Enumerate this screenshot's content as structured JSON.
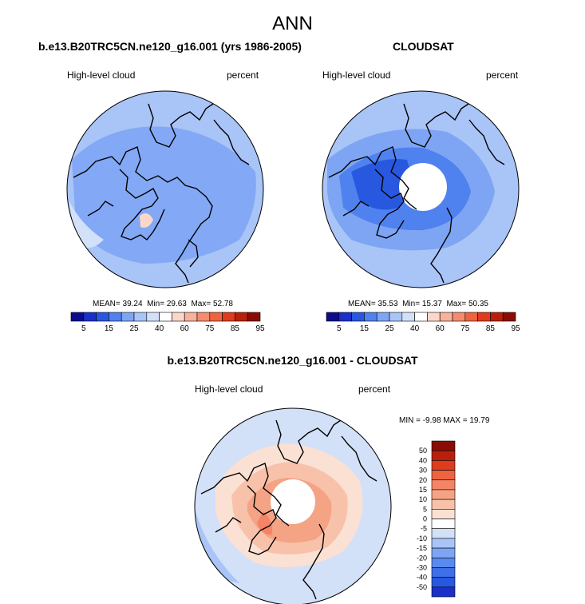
{
  "page": {
    "title": "ANN"
  },
  "colors": {
    "abs_scale": [
      "#0c0c8c",
      "#1a30c8",
      "#2858e0",
      "#4f82ee",
      "#7ea5f4",
      "#a9c4f7",
      "#d2e0f8",
      "#ffffff",
      "#fbd7c9",
      "#f8b19a",
      "#f58c6e",
      "#ef6440",
      "#de3c1c",
      "#b9200c",
      "#8a0d05"
    ],
    "diff_scale": [
      "#0c0c8c",
      "#1a30c8",
      "#2858e0",
      "#3f6fe8",
      "#5a8af0",
      "#7ea5f4",
      "#a9c4f7",
      "#d2e0f8",
      "#ffffff",
      "#fbe1d3",
      "#f8c2aa",
      "#f5a385",
      "#f58466",
      "#ef6440",
      "#de3c1c",
      "#b9200c",
      "#8a0d05"
    ],
    "frame": "#000000"
  },
  "chart_data": [
    {
      "type": "heatmap",
      "projection": "north-polar-stereographic",
      "title": "b.e13.B20TRC5CN.ne120_g16.001 (yrs 1986-2005)",
      "variable_label": "High-level cloud",
      "units": "percent",
      "stats": {
        "mean": "39.24",
        "min": "29.63",
        "max": "52.78"
      },
      "stats_labels": {
        "mean": "MEAN=",
        "min": "Min=",
        "max": "Max="
      },
      "colorbar_levels": [
        "5",
        "15",
        "25",
        "40",
        "60",
        "75",
        "85",
        "95"
      ],
      "colorbar_orientation": "horizontal",
      "missing_pole": false
    },
    {
      "type": "heatmap",
      "projection": "north-polar-stereographic",
      "title": "CLOUDSAT",
      "variable_label": "High-level cloud",
      "units": "percent",
      "stats": {
        "mean": "35.53",
        "min": "15.37",
        "max": "50.35"
      },
      "stats_labels": {
        "mean": "MEAN=",
        "min": "Min=",
        "max": "Max="
      },
      "colorbar_levels": [
        "5",
        "15",
        "25",
        "40",
        "60",
        "75",
        "85",
        "95"
      ],
      "colorbar_orientation": "horizontal",
      "missing_pole": true
    },
    {
      "type": "heatmap",
      "projection": "north-polar-stereographic",
      "title": "b.e13.B20TRC5CN.ne120_g16.001 - CLOUDSAT",
      "variable_label": "High-level cloud",
      "units": "percent",
      "range_text": "MIN =  -9.98 MAX =  19.79",
      "colorbar_levels": [
        "50",
        "40",
        "30",
        "20",
        "15",
        "10",
        "5",
        "0",
        "-5",
        "-10",
        "-15",
        "-20",
        "-30",
        "-40",
        "-50"
      ],
      "colorbar_orientation": "vertical",
      "missing_pole": true
    }
  ]
}
